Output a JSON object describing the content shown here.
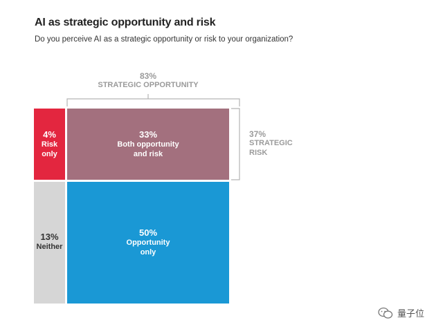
{
  "title": "AI as strategic opportunity and risk",
  "subtitle": "Do you perceive AI as a strategic opportunity or risk to your organization?",
  "watermark_text": "量子位",
  "colors": {
    "risk_only": "#e3263f",
    "both": "#a3707e",
    "opportunity_only": "#1a98d5",
    "neither": "#d6d6d6",
    "bracket": "#b3b3b3"
  },
  "chart_data": {
    "type": "mosaic",
    "title": "AI as strategic opportunity and risk",
    "subtitle": "Do you perceive AI as a strategic opportunity or risk to your organization?",
    "segments": [
      {
        "key": "risk_only",
        "pct": "4%",
        "value": 4,
        "label_line1": "Risk",
        "label_line2": "only"
      },
      {
        "key": "both",
        "pct": "33%",
        "value": 33,
        "label_line1": "Both opportunity",
        "label_line2": "and risk"
      },
      {
        "key": "neither",
        "pct": "13%",
        "value": 13,
        "label_line1": "Neither",
        "label_line2": ""
      },
      {
        "key": "opportunity_only",
        "pct": "50%",
        "value": 50,
        "label_line1": "Opportunity",
        "label_line2": "only"
      }
    ],
    "groups": {
      "strategic_opportunity": {
        "pct": "83%",
        "value": 83,
        "label": "STRATEGIC OPPORTUNITY"
      },
      "strategic_risk": {
        "pct": "37%",
        "value": 37,
        "label_line1": "STRATEGIC",
        "label_line2": "RISK"
      }
    }
  }
}
